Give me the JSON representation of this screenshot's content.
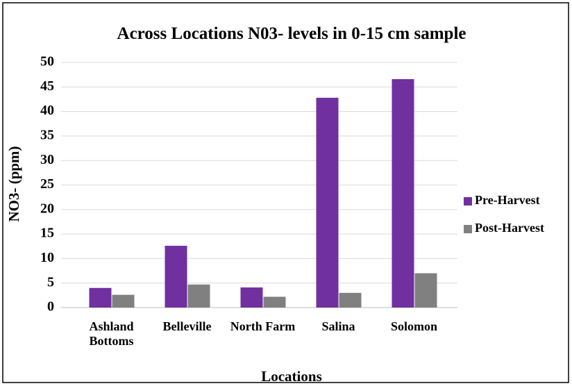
{
  "chart_data": {
    "type": "bar",
    "title": "Across Locations N03- levels in 0-15 cm sample",
    "x_label": "Locations",
    "y_label": "NO3- (ppm)",
    "categories": [
      "Ashland Bottoms",
      "Belleville",
      "North Farm",
      "Salina",
      "Solomon"
    ],
    "series": [
      {
        "name": "Pre-Harvest",
        "color": "#7030a0",
        "values": [
          4.0,
          12.6,
          4.1,
          42.8,
          46.6
        ]
      },
      {
        "name": "Post-Harvest",
        "color": "#808080",
        "values": [
          2.6,
          4.7,
          2.2,
          3.0,
          7.0
        ]
      }
    ],
    "ylim": [
      0,
      50
    ],
    "yticks": [
      0,
      5,
      10,
      15,
      20,
      25,
      30,
      35,
      40,
      45,
      50
    ],
    "grid": true,
    "legend": "right"
  }
}
